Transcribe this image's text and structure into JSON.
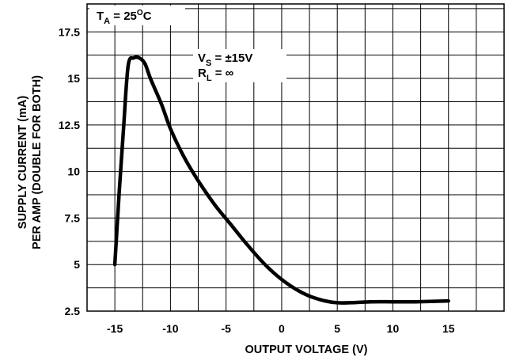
{
  "chart_data": {
    "type": "line",
    "title": "",
    "xlabel": "OUTPUT VOLTAGE (V)",
    "ylabel_lines": [
      "SUPPLY CURRENT (mA)",
      "PER AMP (DOUBLE FOR BOTH)"
    ],
    "xlim": [
      -17.5,
      20
    ],
    "ylim": [
      2.5,
      19
    ],
    "x_ticks": [
      -15,
      -10,
      -5,
      0,
      5,
      10,
      15
    ],
    "x_tick_labels": [
      "-15",
      "-10",
      "-5",
      "0",
      "5",
      "10",
      "15"
    ],
    "y_ticks": [
      2.5,
      5,
      7.5,
      10,
      12.5,
      15,
      17.5
    ],
    "y_tick_labels": [
      "2.5",
      "5",
      "7.5",
      "10",
      "12.5",
      "15",
      "17.5"
    ],
    "grid": true,
    "annotations": {
      "temperature": {
        "main": "T",
        "sub": "A",
        "rest": " = 25",
        "sup": "O",
        "unit": "C"
      },
      "supply": {
        "main": "V",
        "sub": "S",
        "rest": " = ±15V"
      },
      "load": {
        "main": "R",
        "sub": "L",
        "rest": " = ∞"
      }
    },
    "series": [
      {
        "x": [
          -15,
          -14.6,
          -14.2,
          -13.8,
          -13.3,
          -12.8,
          -12.3,
          -11.8,
          -10.8,
          -10,
          -8.8,
          -7.5,
          -6,
          -4.5,
          -3,
          -1.5,
          0,
          1.5,
          3,
          5,
          8,
          10,
          12,
          15
        ],
        "y": [
          5,
          9,
          12.5,
          15.7,
          16.1,
          16.1,
          15.8,
          15,
          13.6,
          12.3,
          10.8,
          9.5,
          8.2,
          7.1,
          6,
          5,
          4.2,
          3.6,
          3.2,
          2.95,
          3,
          3,
          3,
          3.05
        ]
      }
    ],
    "colors": {
      "line": "#000000",
      "grid": "#000000",
      "background": "#ffffff"
    }
  }
}
